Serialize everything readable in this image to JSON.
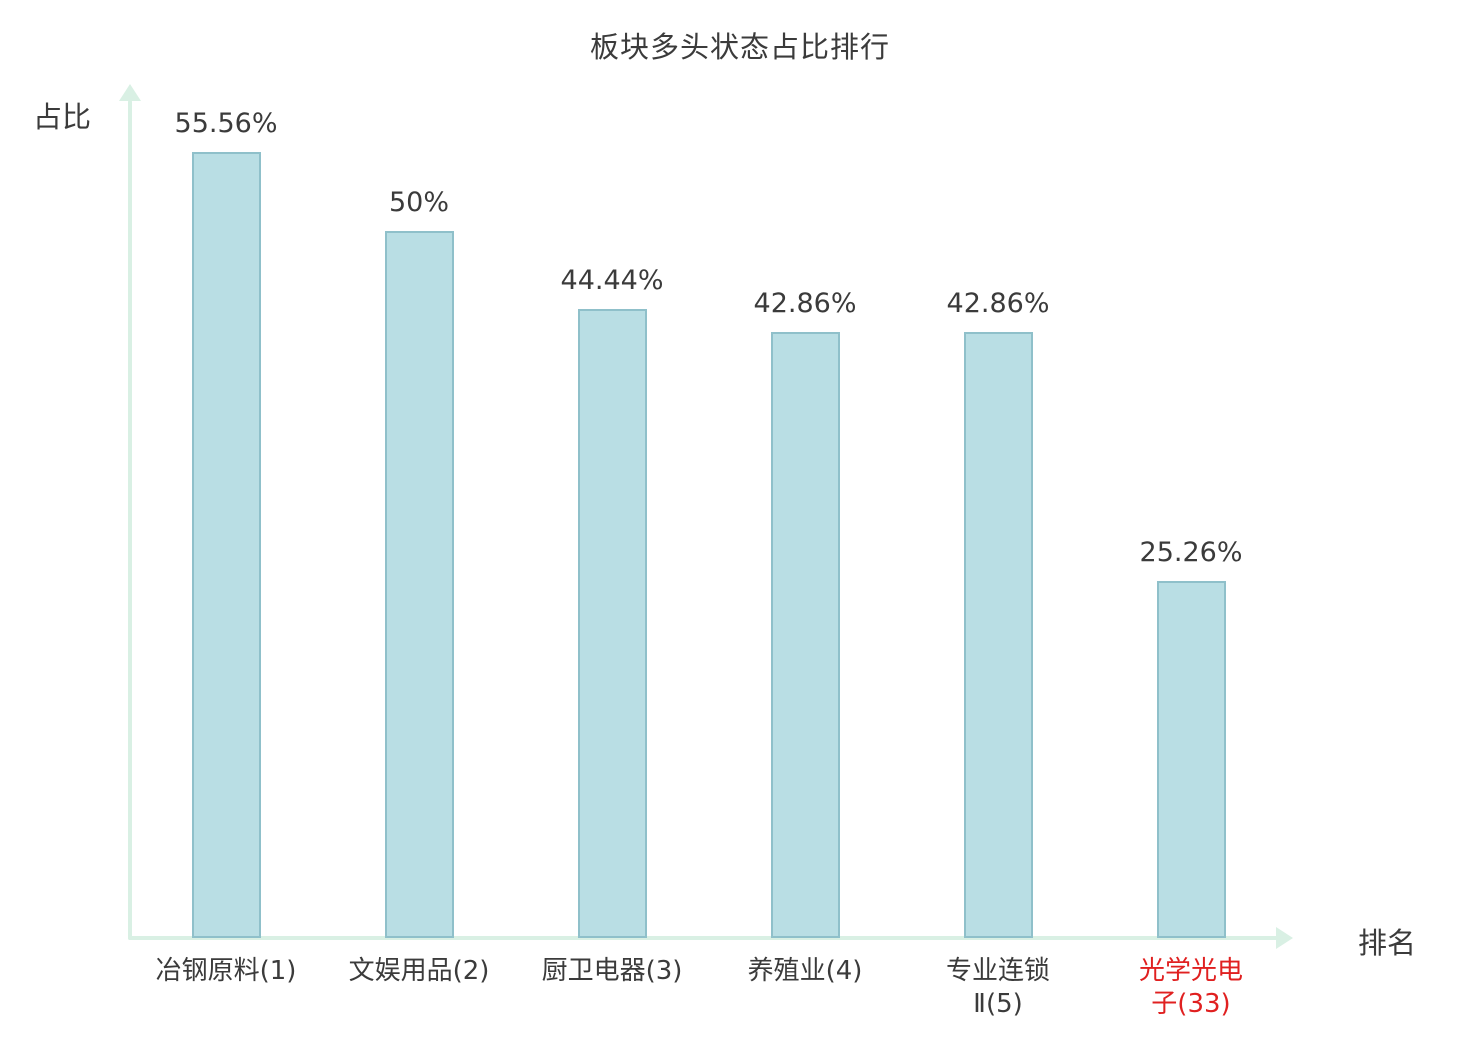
{
  "title": "板块多头状态占比排行",
  "colors": {
    "text": "#3b3b3b",
    "axis": "#d9f0e4",
    "bar_fill": "#b9dee4",
    "bar_border": "#8fc0ca",
    "highlight": "#e02020"
  },
  "chart_data": {
    "type": "bar",
    "title": "板块多头状态占比排行",
    "xlabel": "排名",
    "ylabel": "占比",
    "categories": [
      "冶钢原料(1)",
      "文娱用品(2)",
      "厨卫电器(3)",
      "养殖业(4)",
      "专业连锁Ⅱ(5)",
      "光学光电子(33)"
    ],
    "category_lines": [
      [
        "冶钢原料(1)"
      ],
      [
        "文娱用品(2)"
      ],
      [
        "厨卫电器(3)"
      ],
      [
        "养殖业(4)"
      ],
      [
        "专业连锁",
        "Ⅱ(5)"
      ],
      [
        "光学光电",
        "子(33)"
      ]
    ],
    "values": [
      55.56,
      50,
      44.44,
      42.86,
      42.86,
      25.26
    ],
    "value_labels": [
      "55.56%",
      "50%",
      "44.44%",
      "42.86%",
      "42.86%",
      "25.26%"
    ],
    "highlighted_index": 5,
    "ylim": [
      0,
      60
    ],
    "grid": false,
    "legend": null
  }
}
